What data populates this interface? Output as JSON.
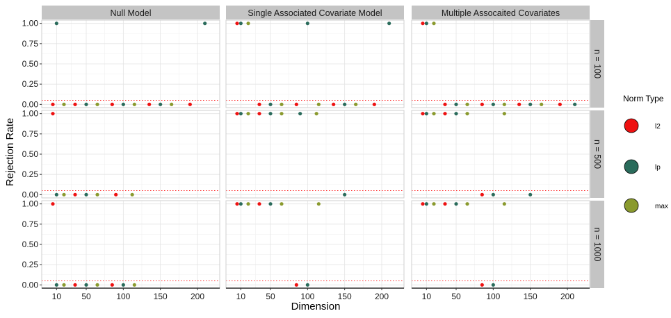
{
  "chart_data": {
    "type": "scatter",
    "xlabel": "Dimension",
    "ylabel": "Rejection Rate",
    "x_ticks": [
      10,
      50,
      100,
      150,
      200
    ],
    "y_ticks": [
      "0.00",
      "0.25",
      "0.50",
      "0.75",
      "1.00"
    ],
    "xlim": [
      -10,
      230
    ],
    "ylim": [
      -0.04,
      1.04
    ],
    "reference_line": 0.05,
    "reference_color": "#ff2a2a",
    "grid": true,
    "columns": [
      "Null Model",
      "Single Associated Covariate Model",
      "Multiple Assocaited Covariates"
    ],
    "rows": [
      "n = 100",
      "n = 500",
      "n = 1000"
    ],
    "legend": {
      "title": "Norm Type",
      "position": "right",
      "entries": [
        {
          "key": "l2",
          "label": "l2",
          "color": "#ee1111"
        },
        {
          "key": "lp",
          "label": "lp",
          "color": "#2a6b5b"
        },
        {
          "key": "max",
          "label": "max",
          "color": "#8a9a2e"
        }
      ]
    },
    "panels": [
      {
        "row": 0,
        "col": 0,
        "points": [
          {
            "x": 5,
            "y": 0,
            "norm": "l2"
          },
          {
            "x": 10,
            "y": 1,
            "norm": "lp"
          },
          {
            "x": 20,
            "y": 0,
            "norm": "max"
          },
          {
            "x": 35,
            "y": 0,
            "norm": "l2"
          },
          {
            "x": 50,
            "y": 0,
            "norm": "lp"
          },
          {
            "x": 65,
            "y": 0,
            "norm": "max"
          },
          {
            "x": 85,
            "y": 0,
            "norm": "l2"
          },
          {
            "x": 100,
            "y": 0,
            "norm": "lp"
          },
          {
            "x": 115,
            "y": 0,
            "norm": "max"
          },
          {
            "x": 135,
            "y": 0,
            "norm": "l2"
          },
          {
            "x": 150,
            "y": 0,
            "norm": "lp"
          },
          {
            "x": 165,
            "y": 0,
            "norm": "max"
          },
          {
            "x": 190,
            "y": 0,
            "norm": "l2"
          },
          {
            "x": 210,
            "y": 1,
            "norm": "lp"
          }
        ]
      },
      {
        "row": 0,
        "col": 1,
        "points": [
          {
            "x": 5,
            "y": 1,
            "norm": "l2"
          },
          {
            "x": 10,
            "y": 1,
            "norm": "lp"
          },
          {
            "x": 20,
            "y": 1,
            "norm": "max"
          },
          {
            "x": 35,
            "y": 0,
            "norm": "l2"
          },
          {
            "x": 50,
            "y": 0,
            "norm": "lp"
          },
          {
            "x": 65,
            "y": 0,
            "norm": "max"
          },
          {
            "x": 85,
            "y": 0,
            "norm": "l2"
          },
          {
            "x": 100,
            "y": 1,
            "norm": "lp"
          },
          {
            "x": 115,
            "y": 0,
            "norm": "max"
          },
          {
            "x": 135,
            "y": 0,
            "norm": "l2"
          },
          {
            "x": 150,
            "y": 0,
            "norm": "lp"
          },
          {
            "x": 165,
            "y": 0,
            "norm": "max"
          },
          {
            "x": 190,
            "y": 0,
            "norm": "l2"
          },
          {
            "x": 210,
            "y": 1,
            "norm": "lp"
          }
        ]
      },
      {
        "row": 0,
        "col": 2,
        "points": [
          {
            "x": 5,
            "y": 1,
            "norm": "l2"
          },
          {
            "x": 10,
            "y": 1,
            "norm": "lp"
          },
          {
            "x": 20,
            "y": 1,
            "norm": "max"
          },
          {
            "x": 35,
            "y": 0,
            "norm": "l2"
          },
          {
            "x": 50,
            "y": 0,
            "norm": "lp"
          },
          {
            "x": 65,
            "y": 0,
            "norm": "max"
          },
          {
            "x": 85,
            "y": 0,
            "norm": "l2"
          },
          {
            "x": 100,
            "y": 0,
            "norm": "lp"
          },
          {
            "x": 115,
            "y": 0,
            "norm": "max"
          },
          {
            "x": 135,
            "y": 0,
            "norm": "l2"
          },
          {
            "x": 150,
            "y": 0,
            "norm": "lp"
          },
          {
            "x": 165,
            "y": 0,
            "norm": "max"
          },
          {
            "x": 190,
            "y": 0,
            "norm": "l2"
          },
          {
            "x": 210,
            "y": 0,
            "norm": "lp"
          }
        ]
      },
      {
        "row": 1,
        "col": 0,
        "points": [
          {
            "x": 5,
            "y": 1,
            "norm": "l2"
          },
          {
            "x": 10,
            "y": 0,
            "norm": "lp"
          },
          {
            "x": 20,
            "y": 0,
            "norm": "max"
          },
          {
            "x": 35,
            "y": 0,
            "norm": "l2"
          },
          {
            "x": 50,
            "y": 0,
            "norm": "lp"
          },
          {
            "x": 65,
            "y": 0,
            "norm": "max"
          },
          {
            "x": 90,
            "y": 0,
            "norm": "l2"
          },
          {
            "x": 112,
            "y": 0,
            "norm": "max"
          }
        ]
      },
      {
        "row": 1,
        "col": 1,
        "points": [
          {
            "x": 5,
            "y": 1,
            "norm": "l2"
          },
          {
            "x": 10,
            "y": 1,
            "norm": "lp"
          },
          {
            "x": 20,
            "y": 1,
            "norm": "max"
          },
          {
            "x": 35,
            "y": 1,
            "norm": "l2"
          },
          {
            "x": 50,
            "y": 1,
            "norm": "lp"
          },
          {
            "x": 65,
            "y": 1,
            "norm": "max"
          },
          {
            "x": 90,
            "y": 1,
            "norm": "lp"
          },
          {
            "x": 112,
            "y": 1,
            "norm": "max"
          },
          {
            "x": 150,
            "y": 0,
            "norm": "lp"
          }
        ]
      },
      {
        "row": 1,
        "col": 2,
        "points": [
          {
            "x": 5,
            "y": 1,
            "norm": "l2"
          },
          {
            "x": 10,
            "y": 1,
            "norm": "lp"
          },
          {
            "x": 20,
            "y": 1,
            "norm": "max"
          },
          {
            "x": 35,
            "y": 1,
            "norm": "l2"
          },
          {
            "x": 50,
            "y": 1,
            "norm": "lp"
          },
          {
            "x": 65,
            "y": 1,
            "norm": "max"
          },
          {
            "x": 85,
            "y": 0,
            "norm": "l2"
          },
          {
            "x": 100,
            "y": 0,
            "norm": "lp"
          },
          {
            "x": 115,
            "y": 1,
            "norm": "max"
          },
          {
            "x": 150,
            "y": 0,
            "norm": "lp"
          }
        ]
      },
      {
        "row": 2,
        "col": 0,
        "points": [
          {
            "x": 5,
            "y": 1,
            "norm": "l2"
          },
          {
            "x": 10,
            "y": 0,
            "norm": "lp"
          },
          {
            "x": 20,
            "y": 0,
            "norm": "max"
          },
          {
            "x": 35,
            "y": 0,
            "norm": "l2"
          },
          {
            "x": 50,
            "y": 0,
            "norm": "lp"
          },
          {
            "x": 65,
            "y": 0,
            "norm": "max"
          },
          {
            "x": 85,
            "y": 0,
            "norm": "l2"
          },
          {
            "x": 100,
            "y": 0,
            "norm": "lp"
          },
          {
            "x": 115,
            "y": 0,
            "norm": "max"
          }
        ]
      },
      {
        "row": 2,
        "col": 1,
        "points": [
          {
            "x": 5,
            "y": 1,
            "norm": "l2"
          },
          {
            "x": 10,
            "y": 1,
            "norm": "lp"
          },
          {
            "x": 20,
            "y": 1,
            "norm": "max"
          },
          {
            "x": 35,
            "y": 1,
            "norm": "l2"
          },
          {
            "x": 50,
            "y": 1,
            "norm": "lp"
          },
          {
            "x": 65,
            "y": 1,
            "norm": "max"
          },
          {
            "x": 85,
            "y": 0,
            "norm": "l2"
          },
          {
            "x": 100,
            "y": 0,
            "norm": "lp"
          },
          {
            "x": 115,
            "y": 1,
            "norm": "max"
          }
        ]
      },
      {
        "row": 2,
        "col": 2,
        "points": [
          {
            "x": 5,
            "y": 1,
            "norm": "l2"
          },
          {
            "x": 10,
            "y": 1,
            "norm": "lp"
          },
          {
            "x": 20,
            "y": 1,
            "norm": "max"
          },
          {
            "x": 35,
            "y": 1,
            "norm": "l2"
          },
          {
            "x": 50,
            "y": 1,
            "norm": "lp"
          },
          {
            "x": 65,
            "y": 1,
            "norm": "max"
          },
          {
            "x": 85,
            "y": 0,
            "norm": "l2"
          },
          {
            "x": 100,
            "y": 0,
            "norm": "lp"
          },
          {
            "x": 115,
            "y": 1,
            "norm": "max"
          }
        ]
      }
    ]
  }
}
